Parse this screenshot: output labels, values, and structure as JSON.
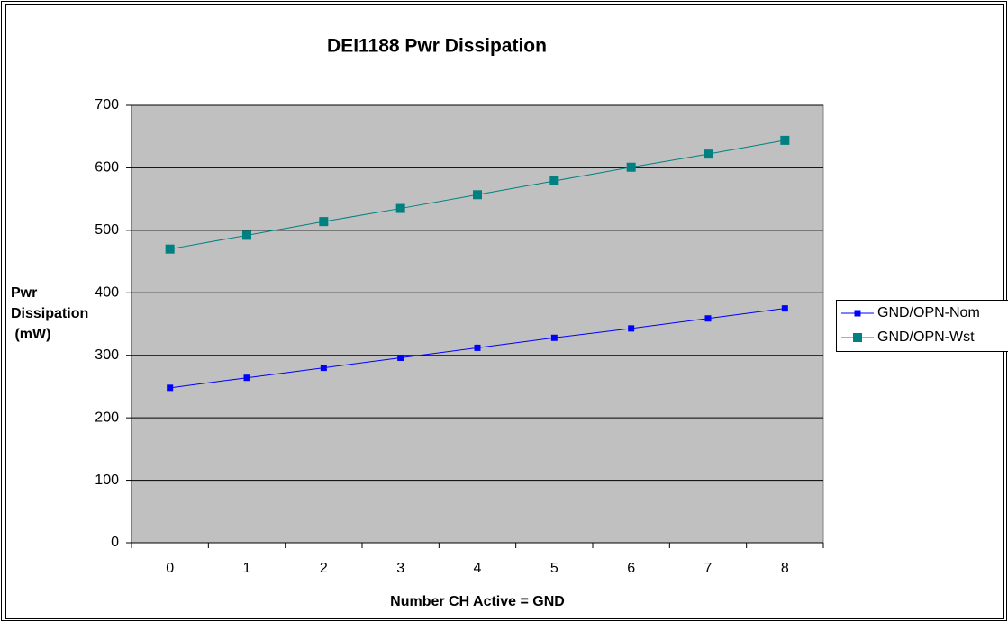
{
  "chart_data": {
    "type": "line",
    "title": "DEI1188  Pwr Dissipation",
    "y_label": [
      "Pwr",
      "Dissipation",
      " (mW)"
    ],
    "x_label": "Number CH Active = GND",
    "categories": [
      "0",
      "1",
      "2",
      "3",
      "4",
      "5",
      "6",
      "7",
      "8"
    ],
    "series": [
      {
        "name": "GND/OPN-Nom",
        "color": "#0000ff",
        "values": [
          248,
          264,
          280,
          296,
          312,
          328,
          343,
          359,
          375
        ]
      },
      {
        "name": "GND/OPN-Wst",
        "color": "#008080",
        "values": [
          470,
          492,
          514,
          535,
          557,
          579,
          601,
          622,
          644
        ]
      }
    ],
    "ylim": [
      0,
      700
    ],
    "yticks": [
      0,
      100,
      200,
      300,
      400,
      500,
      600,
      700
    ],
    "grid": true,
    "legend": "right"
  }
}
